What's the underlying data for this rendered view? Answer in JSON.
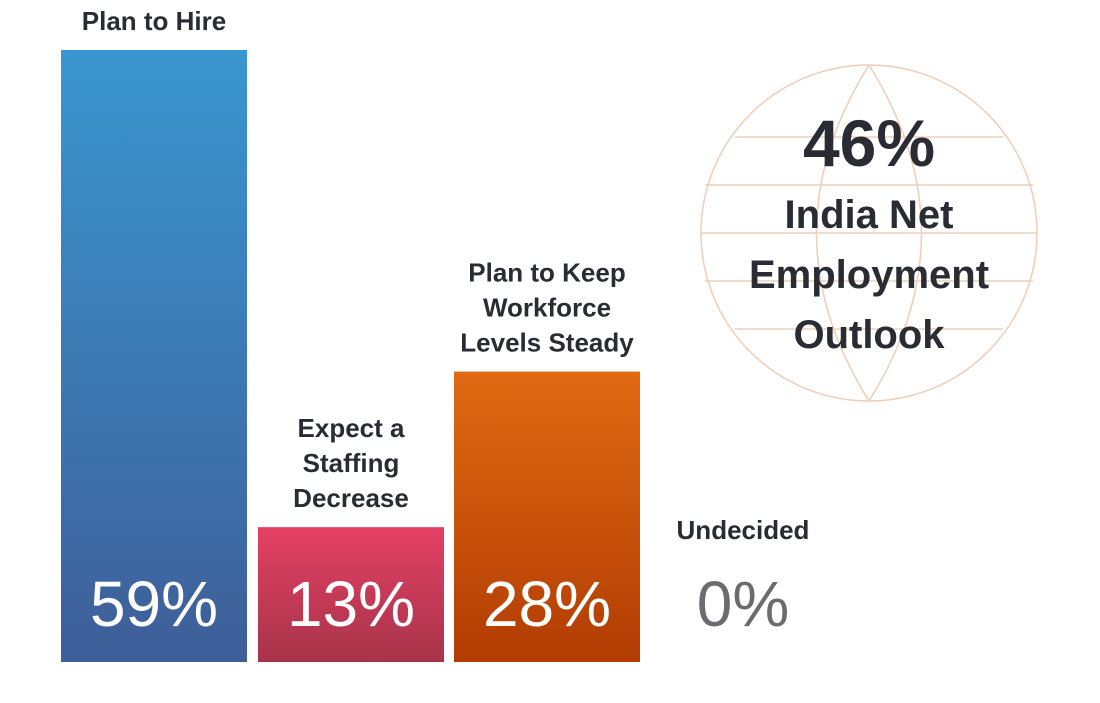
{
  "chart_data": {
    "type": "bar",
    "categories": [
      [
        "Plan to Hire"
      ],
      [
        "Expect a",
        "Staffing",
        "Decrease"
      ],
      [
        "Plan to Keep",
        "Workforce",
        "Levels Steady"
      ],
      [
        "Undecided"
      ]
    ],
    "values": [
      59,
      13,
      28,
      0
    ],
    "value_labels": [
      "59%",
      "13%",
      "28%",
      "0%"
    ],
    "ylim": [
      0,
      59
    ],
    "colors": {
      "hire": [
        "#3a96d0",
        "#3e5e98"
      ],
      "decrease": [
        "#e44064",
        "#a7344a"
      ],
      "steady": [
        "#e06a12",
        "#b23c02"
      ],
      "undecided_value": "#6b6b70",
      "label_text": "#2a2c33",
      "globe_lines": "#f0cdb6"
    },
    "callout": {
      "value": "46%",
      "label_lines": [
        "India Net",
        "Employment",
        "Outlook"
      ]
    }
  }
}
